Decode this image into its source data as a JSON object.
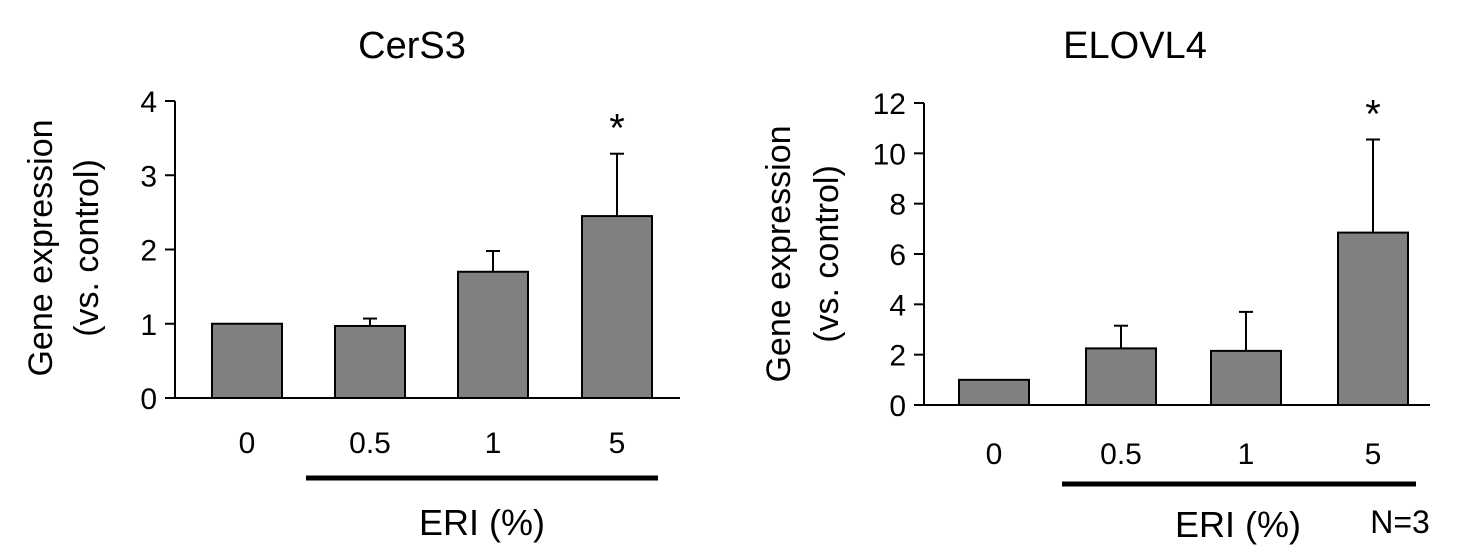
{
  "chart_data": [
    {
      "type": "bar",
      "title": "CerS3",
      "ylabel_lines": [
        "Gene expression",
        "(vs. control)"
      ],
      "xlabel": "ERI (%)",
      "categories": [
        "0",
        "0.5",
        "1",
        "5"
      ],
      "values": [
        1.0,
        0.97,
        1.7,
        2.45
      ],
      "errors": [
        0,
        0.1,
        0.28,
        0.84
      ],
      "significance": [
        "",
        "",
        "",
        "*"
      ],
      "ylim": [
        0,
        4
      ],
      "yticks": [
        "0",
        "1",
        "2",
        "3",
        "4"
      ],
      "bar_color": "#808080",
      "grid": false,
      "legend": "none"
    },
    {
      "type": "bar",
      "title": "ELOVL4",
      "ylabel_lines": [
        "Gene expression",
        "(vs. control)"
      ],
      "xlabel": "ERI (%)",
      "categories": [
        "0",
        "0.5",
        "1",
        "5"
      ],
      "values": [
        1.0,
        2.25,
        2.15,
        6.85
      ],
      "errors": [
        0,
        0.9,
        1.55,
        3.7
      ],
      "significance": [
        "",
        "",
        "",
        "*"
      ],
      "ylim": [
        0,
        12
      ],
      "yticks": [
        "0",
        "2",
        "4",
        "6",
        "8",
        "10",
        "12"
      ],
      "bar_color": "#808080",
      "grid": false,
      "legend": "none"
    }
  ],
  "footnote": "N=3"
}
